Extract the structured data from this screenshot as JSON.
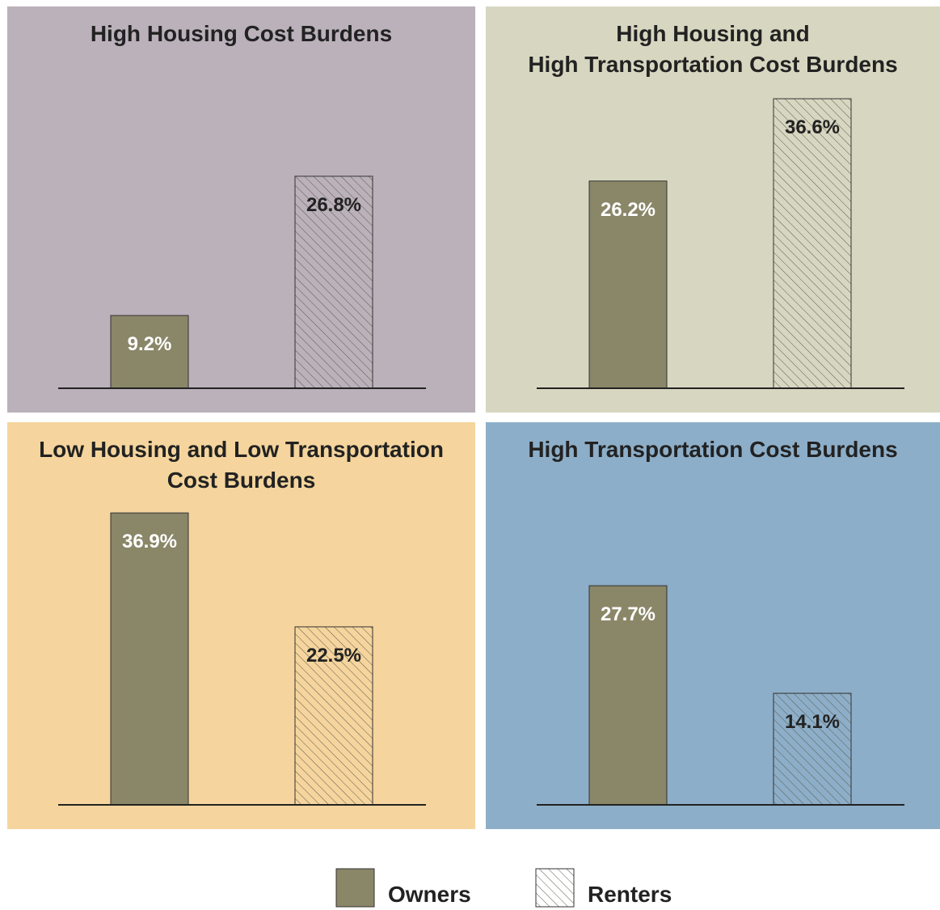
{
  "legend": [
    {
      "name": "Owners",
      "color": "#8a8668",
      "pattern": "solid"
    },
    {
      "name": "Renters",
      "color": "#5a5a50",
      "pattern": "hatch"
    }
  ],
  "chart_data": [
    {
      "type": "bar",
      "title": [
        "High Housing Cost Burdens"
      ],
      "background": "#bbb1ba",
      "values": [
        9.2,
        26.8
      ],
      "value_labels": [
        "9.2%",
        "26.8%"
      ]
    },
    {
      "type": "bar",
      "title": [
        "High Housing and",
        "High Transportation Cost Burdens"
      ],
      "background": "#d7d7c1",
      "values": [
        26.2,
        36.6
      ],
      "value_labels": [
        "26.2%",
        "36.6%"
      ]
    },
    {
      "type": "bar",
      "title": [
        "Low Housing and Low Transportation",
        "Cost Burdens"
      ],
      "background": "#f5d59d",
      "values": [
        36.9,
        22.5
      ],
      "value_labels": [
        "36.9%",
        "22.5%"
      ]
    },
    {
      "type": "bar",
      "title": [
        "High Transportation Cost Burdens"
      ],
      "background": "#8daec8",
      "values": [
        27.7,
        14.1
      ],
      "value_labels": [
        "27.7%",
        "14.1%"
      ]
    }
  ]
}
